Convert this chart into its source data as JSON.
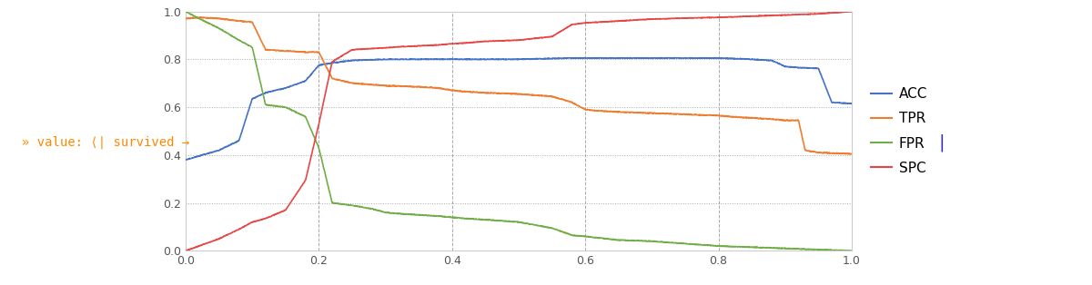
{
  "title": "",
  "xlim": [
    0.0,
    1.0
  ],
  "ylim": [
    0.0,
    1.0
  ],
  "xticks": [
    0.0,
    0.2,
    0.4,
    0.6,
    0.8,
    1.0
  ],
  "yticks": [
    0.0,
    0.2,
    0.4,
    0.6,
    0.8,
    1.0
  ],
  "grid_color": "#aaaaaa",
  "colors": {
    "ACC": "#4472c4",
    "TPR": "#ed7d31",
    "FPR": "#70ad47",
    "SPC": "#e84545"
  },
  "legend_labels": [
    "ACC",
    "TPR",
    "FPR",
    "SPC"
  ],
  "left_annotation": "» value: ⟨| survived →",
  "background_color": "#ffffff",
  "plot_bg": "#ffffff",
  "figure_width": 12.0,
  "figure_height": 3.14,
  "acc_points": [
    [
      0.0,
      0.38
    ],
    [
      0.05,
      0.42
    ],
    [
      0.08,
      0.46
    ],
    [
      0.1,
      0.635
    ],
    [
      0.12,
      0.66
    ],
    [
      0.15,
      0.68
    ],
    [
      0.18,
      0.71
    ],
    [
      0.2,
      0.775
    ],
    [
      0.22,
      0.785
    ],
    [
      0.25,
      0.795
    ],
    [
      0.3,
      0.8
    ],
    [
      0.4,
      0.8
    ],
    [
      0.5,
      0.8
    ],
    [
      0.58,
      0.805
    ],
    [
      0.6,
      0.805
    ],
    [
      0.7,
      0.805
    ],
    [
      0.8,
      0.805
    ],
    [
      0.85,
      0.8
    ],
    [
      0.88,
      0.795
    ],
    [
      0.9,
      0.77
    ],
    [
      0.92,
      0.765
    ],
    [
      0.95,
      0.762
    ],
    [
      0.97,
      0.62
    ],
    [
      1.0,
      0.615
    ]
  ],
  "tpr_points": [
    [
      0.0,
      0.97
    ],
    [
      0.02,
      0.975
    ],
    [
      0.05,
      0.97
    ],
    [
      0.08,
      0.96
    ],
    [
      0.1,
      0.955
    ],
    [
      0.12,
      0.84
    ],
    [
      0.15,
      0.835
    ],
    [
      0.18,
      0.83
    ],
    [
      0.2,
      0.83
    ],
    [
      0.22,
      0.72
    ],
    [
      0.25,
      0.7
    ],
    [
      0.3,
      0.69
    ],
    [
      0.35,
      0.685
    ],
    [
      0.38,
      0.68
    ],
    [
      0.4,
      0.67
    ],
    [
      0.42,
      0.665
    ],
    [
      0.45,
      0.66
    ],
    [
      0.5,
      0.655
    ],
    [
      0.55,
      0.645
    ],
    [
      0.58,
      0.62
    ],
    [
      0.6,
      0.59
    ],
    [
      0.62,
      0.585
    ],
    [
      0.65,
      0.58
    ],
    [
      0.7,
      0.575
    ],
    [
      0.75,
      0.57
    ],
    [
      0.8,
      0.565
    ],
    [
      0.82,
      0.56
    ],
    [
      0.85,
      0.555
    ],
    [
      0.88,
      0.55
    ],
    [
      0.9,
      0.545
    ],
    [
      0.92,
      0.545
    ],
    [
      0.93,
      0.42
    ],
    [
      0.95,
      0.41
    ],
    [
      1.0,
      0.405
    ]
  ],
  "fpr_points": [
    [
      0.0,
      1.0
    ],
    [
      0.02,
      0.97
    ],
    [
      0.05,
      0.93
    ],
    [
      0.08,
      0.88
    ],
    [
      0.1,
      0.85
    ],
    [
      0.12,
      0.61
    ],
    [
      0.15,
      0.6
    ],
    [
      0.18,
      0.56
    ],
    [
      0.2,
      0.43
    ],
    [
      0.22,
      0.2
    ],
    [
      0.25,
      0.19
    ],
    [
      0.28,
      0.175
    ],
    [
      0.3,
      0.16
    ],
    [
      0.32,
      0.155
    ],
    [
      0.35,
      0.15
    ],
    [
      0.38,
      0.145
    ],
    [
      0.4,
      0.14
    ],
    [
      0.42,
      0.135
    ],
    [
      0.45,
      0.13
    ],
    [
      0.5,
      0.12
    ],
    [
      0.55,
      0.095
    ],
    [
      0.58,
      0.065
    ],
    [
      0.6,
      0.06
    ],
    [
      0.65,
      0.045
    ],
    [
      0.7,
      0.04
    ],
    [
      0.75,
      0.03
    ],
    [
      0.8,
      0.02
    ],
    [
      0.85,
      0.015
    ],
    [
      0.9,
      0.01
    ],
    [
      0.95,
      0.005
    ],
    [
      1.0,
      0.0
    ]
  ],
  "spc_points": [
    [
      0.0,
      0.0
    ],
    [
      0.02,
      0.02
    ],
    [
      0.05,
      0.05
    ],
    [
      0.08,
      0.09
    ],
    [
      0.1,
      0.12
    ],
    [
      0.12,
      0.135
    ],
    [
      0.15,
      0.17
    ],
    [
      0.18,
      0.295
    ],
    [
      0.2,
      0.53
    ],
    [
      0.22,
      0.79
    ],
    [
      0.25,
      0.84
    ],
    [
      0.28,
      0.845
    ],
    [
      0.3,
      0.848
    ],
    [
      0.32,
      0.852
    ],
    [
      0.35,
      0.856
    ],
    [
      0.38,
      0.86
    ],
    [
      0.4,
      0.865
    ],
    [
      0.42,
      0.868
    ],
    [
      0.45,
      0.875
    ],
    [
      0.5,
      0.88
    ],
    [
      0.55,
      0.895
    ],
    [
      0.58,
      0.945
    ],
    [
      0.6,
      0.952
    ],
    [
      0.65,
      0.96
    ],
    [
      0.7,
      0.968
    ],
    [
      0.75,
      0.972
    ],
    [
      0.8,
      0.975
    ],
    [
      0.85,
      0.98
    ],
    [
      0.9,
      0.985
    ],
    [
      0.95,
      0.99
    ],
    [
      1.0,
      1.0
    ]
  ]
}
